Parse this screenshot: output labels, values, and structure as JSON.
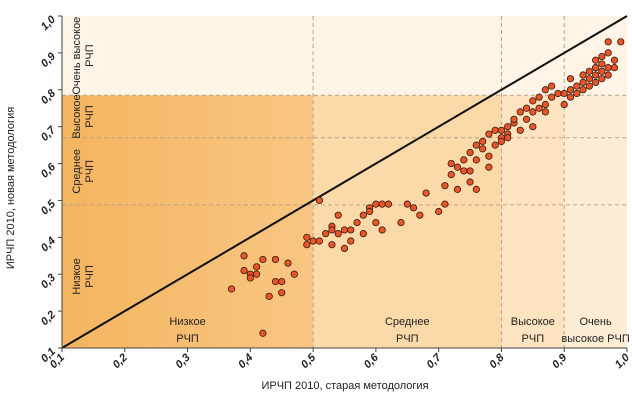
{
  "chart_data": {
    "type": "scatter",
    "xlabel": "ИРЧП 2010, старая методология",
    "ylabel": "ИРЧП 2010, новая методология",
    "xlim": [
      0.1,
      1.0
    ],
    "ylim": [
      0.1,
      1.0
    ],
    "ticks": [
      "0,1",
      "0,2",
      "0,3",
      "0,4",
      "0,5",
      "0,6",
      "0,7",
      "0,8",
      "0,9",
      "1,0"
    ],
    "x_thresholds": [
      0.5,
      0.8,
      0.9
    ],
    "y_thresholds": [
      0.488,
      0.67,
      0.785
    ],
    "diagonal": {
      "from": [
        0.1,
        0.1
      ],
      "to": [
        1.0,
        1.0
      ]
    },
    "x_zones": [
      {
        "from": 0.1,
        "to": 0.5,
        "line1": "Низкое",
        "line2": "РЧП",
        "color": "#f6b963"
      },
      {
        "from": 0.5,
        "to": 0.8,
        "line1": "Среднее",
        "line2": "РЧП",
        "color": "#fbd9a8"
      },
      {
        "from": 0.8,
        "to": 0.9,
        "line1": "Высокое",
        "line2": "РЧП",
        "color": "#fde3bf"
      },
      {
        "from": 0.9,
        "to": 1.0,
        "line1": "Очень",
        "line2": "высокое РЧП",
        "color": "#feedd5"
      }
    ],
    "y_zones": [
      {
        "from": 0.1,
        "to": 0.488,
        "line1": "Низкое",
        "line2": "РЧП"
      },
      {
        "from": 0.488,
        "to": 0.67,
        "line1": "Среднее",
        "line2": "РЧП"
      },
      {
        "from": 0.67,
        "to": 0.785,
        "line1": "Высокое",
        "line2": "РЧП"
      },
      {
        "from": 0.785,
        "to": 1.0,
        "line1": "Очень высокое",
        "line2": "РЧП"
      }
    ],
    "colors": {
      "top_band": "#fff4e5",
      "point_fill": "#e8552a",
      "point_stroke": "#3a1a0a",
      "diagonal": "#111111",
      "threshold_line": "#b8a48a"
    },
    "points": [
      [
        0.37,
        0.26
      ],
      [
        0.39,
        0.35
      ],
      [
        0.39,
        0.31
      ],
      [
        0.4,
        0.3
      ],
      [
        0.4,
        0.29
      ],
      [
        0.41,
        0.32
      ],
      [
        0.41,
        0.3
      ],
      [
        0.42,
        0.34
      ],
      [
        0.42,
        0.14
      ],
      [
        0.43,
        0.24
      ],
      [
        0.44,
        0.28
      ],
      [
        0.44,
        0.34
      ],
      [
        0.45,
        0.28
      ],
      [
        0.45,
        0.25
      ],
      [
        0.46,
        0.33
      ],
      [
        0.47,
        0.3
      ],
      [
        0.49,
        0.4
      ],
      [
        0.49,
        0.38
      ],
      [
        0.5,
        0.39
      ],
      [
        0.51,
        0.39
      ],
      [
        0.51,
        0.5
      ],
      [
        0.52,
        0.41
      ],
      [
        0.53,
        0.43
      ],
      [
        0.53,
        0.42
      ],
      [
        0.53,
        0.38
      ],
      [
        0.54,
        0.41
      ],
      [
        0.54,
        0.46
      ],
      [
        0.55,
        0.42
      ],
      [
        0.55,
        0.37
      ],
      [
        0.56,
        0.39
      ],
      [
        0.56,
        0.42
      ],
      [
        0.57,
        0.44
      ],
      [
        0.58,
        0.46
      ],
      [
        0.58,
        0.41
      ],
      [
        0.59,
        0.48
      ],
      [
        0.59,
        0.47
      ],
      [
        0.6,
        0.49
      ],
      [
        0.6,
        0.44
      ],
      [
        0.61,
        0.49
      ],
      [
        0.61,
        0.42
      ],
      [
        0.62,
        0.49
      ],
      [
        0.64,
        0.44
      ],
      [
        0.65,
        0.49
      ],
      [
        0.66,
        0.48
      ],
      [
        0.67,
        0.46
      ],
      [
        0.68,
        0.52
      ],
      [
        0.7,
        0.47
      ],
      [
        0.71,
        0.54
      ],
      [
        0.71,
        0.49
      ],
      [
        0.72,
        0.57
      ],
      [
        0.72,
        0.6
      ],
      [
        0.73,
        0.53
      ],
      [
        0.73,
        0.59
      ],
      [
        0.74,
        0.58
      ],
      [
        0.74,
        0.61
      ],
      [
        0.75,
        0.63
      ],
      [
        0.75,
        0.58
      ],
      [
        0.75,
        0.55
      ],
      [
        0.76,
        0.65
      ],
      [
        0.76,
        0.61
      ],
      [
        0.76,
        0.53
      ],
      [
        0.77,
        0.64
      ],
      [
        0.77,
        0.66
      ],
      [
        0.78,
        0.68
      ],
      [
        0.78,
        0.62
      ],
      [
        0.78,
        0.59
      ],
      [
        0.79,
        0.69
      ],
      [
        0.79,
        0.65
      ],
      [
        0.8,
        0.69
      ],
      [
        0.8,
        0.67
      ],
      [
        0.8,
        0.66
      ],
      [
        0.81,
        0.7
      ],
      [
        0.81,
        0.68
      ],
      [
        0.81,
        0.67
      ],
      [
        0.82,
        0.71
      ],
      [
        0.82,
        0.72
      ],
      [
        0.83,
        0.69
      ],
      [
        0.83,
        0.74
      ],
      [
        0.84,
        0.75
      ],
      [
        0.84,
        0.72
      ],
      [
        0.85,
        0.74
      ],
      [
        0.85,
        0.77
      ],
      [
        0.85,
        0.7
      ],
      [
        0.86,
        0.75
      ],
      [
        0.86,
        0.78
      ],
      [
        0.87,
        0.8
      ],
      [
        0.87,
        0.76
      ],
      [
        0.87,
        0.74
      ],
      [
        0.88,
        0.78
      ],
      [
        0.88,
        0.81
      ],
      [
        0.89,
        0.79
      ],
      [
        0.9,
        0.79
      ],
      [
        0.9,
        0.76
      ],
      [
        0.91,
        0.78
      ],
      [
        0.91,
        0.8
      ],
      [
        0.91,
        0.83
      ],
      [
        0.92,
        0.81
      ],
      [
        0.92,
        0.79
      ],
      [
        0.93,
        0.84
      ],
      [
        0.93,
        0.82
      ],
      [
        0.93,
        0.8
      ],
      [
        0.94,
        0.85
      ],
      [
        0.94,
        0.83
      ],
      [
        0.94,
        0.81
      ],
      [
        0.95,
        0.86
      ],
      [
        0.95,
        0.84
      ],
      [
        0.95,
        0.82
      ],
      [
        0.95,
        0.88
      ],
      [
        0.96,
        0.87
      ],
      [
        0.96,
        0.85
      ],
      [
        0.96,
        0.83
      ],
      [
        0.96,
        0.89
      ],
      [
        0.97,
        0.9
      ],
      [
        0.97,
        0.86
      ],
      [
        0.97,
        0.84
      ],
      [
        0.97,
        0.93
      ],
      [
        0.98,
        0.88
      ],
      [
        0.98,
        0.86
      ],
      [
        0.99,
        0.93
      ]
    ]
  }
}
